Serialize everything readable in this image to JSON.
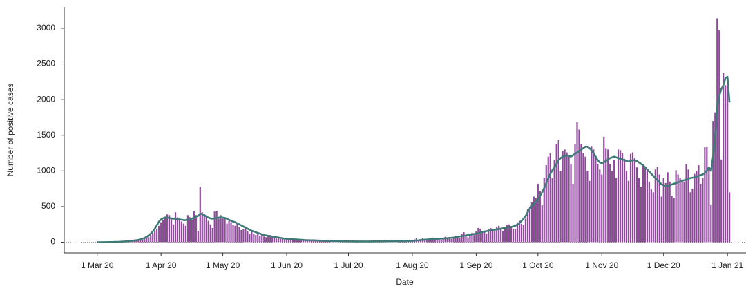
{
  "chart_data": {
    "type": "bar",
    "xlabel": "Date",
    "ylabel": "Number of positive cases",
    "x": [
      "2020-03-01",
      "2020-03-02",
      "2020-03-03",
      "2020-03-04",
      "2020-03-05",
      "2020-03-06",
      "2020-03-07",
      "2020-03-08",
      "2020-03-09",
      "2020-03-10",
      "2020-03-11",
      "2020-03-12",
      "2020-03-13",
      "2020-03-14",
      "2020-03-15",
      "2020-03-16",
      "2020-03-17",
      "2020-03-18",
      "2020-03-19",
      "2020-03-20",
      "2020-03-21",
      "2020-03-22",
      "2020-03-23",
      "2020-03-24",
      "2020-03-25",
      "2020-03-26",
      "2020-03-27",
      "2020-03-28",
      "2020-03-29",
      "2020-03-30",
      "2020-03-31",
      "2020-04-01",
      "2020-04-02",
      "2020-04-03",
      "2020-04-04",
      "2020-04-05",
      "2020-04-06",
      "2020-04-07",
      "2020-04-08",
      "2020-04-09",
      "2020-04-10",
      "2020-04-11",
      "2020-04-12",
      "2020-04-13",
      "2020-04-14",
      "2020-04-15",
      "2020-04-16",
      "2020-04-17",
      "2020-04-18",
      "2020-04-19",
      "2020-04-20",
      "2020-04-21",
      "2020-04-22",
      "2020-04-23",
      "2020-04-24",
      "2020-04-25",
      "2020-04-26",
      "2020-04-27",
      "2020-04-28",
      "2020-04-29",
      "2020-04-30",
      "2020-05-01",
      "2020-05-02",
      "2020-05-03",
      "2020-05-04",
      "2020-05-05",
      "2020-05-06",
      "2020-05-07",
      "2020-05-08",
      "2020-05-09",
      "2020-05-10",
      "2020-05-11",
      "2020-05-12",
      "2020-05-13",
      "2020-05-14",
      "2020-05-15",
      "2020-05-16",
      "2020-05-17",
      "2020-05-18",
      "2020-05-19",
      "2020-05-20",
      "2020-05-21",
      "2020-05-22",
      "2020-05-23",
      "2020-05-24",
      "2020-05-25",
      "2020-05-26",
      "2020-05-27",
      "2020-05-28",
      "2020-05-29",
      "2020-05-30",
      "2020-05-31",
      "2020-06-01",
      "2020-06-02",
      "2020-06-03",
      "2020-06-04",
      "2020-06-05",
      "2020-06-06",
      "2020-06-07",
      "2020-06-08",
      "2020-06-09",
      "2020-06-10",
      "2020-06-11",
      "2020-06-12",
      "2020-06-13",
      "2020-06-14",
      "2020-06-15",
      "2020-06-16",
      "2020-06-17",
      "2020-06-18",
      "2020-06-19",
      "2020-06-20",
      "2020-06-21",
      "2020-06-22",
      "2020-06-23",
      "2020-06-24",
      "2020-06-25",
      "2020-06-26",
      "2020-06-27",
      "2020-06-28",
      "2020-06-29",
      "2020-06-30",
      "2020-07-01",
      "2020-07-02",
      "2020-07-03",
      "2020-07-04",
      "2020-07-05",
      "2020-07-06",
      "2020-07-07",
      "2020-07-08",
      "2020-07-09",
      "2020-07-10",
      "2020-07-11",
      "2020-07-12",
      "2020-07-13",
      "2020-07-14",
      "2020-07-15",
      "2020-07-16",
      "2020-07-17",
      "2020-07-18",
      "2020-07-19",
      "2020-07-20",
      "2020-07-21",
      "2020-07-22",
      "2020-07-23",
      "2020-07-24",
      "2020-07-25",
      "2020-07-26",
      "2020-07-27",
      "2020-07-28",
      "2020-07-29",
      "2020-07-30",
      "2020-07-31",
      "2020-08-01",
      "2020-08-02",
      "2020-08-03",
      "2020-08-04",
      "2020-08-05",
      "2020-08-06",
      "2020-08-07",
      "2020-08-08",
      "2020-08-09",
      "2020-08-10",
      "2020-08-11",
      "2020-08-12",
      "2020-08-13",
      "2020-08-14",
      "2020-08-15",
      "2020-08-16",
      "2020-08-17",
      "2020-08-18",
      "2020-08-19",
      "2020-08-20",
      "2020-08-21",
      "2020-08-22",
      "2020-08-23",
      "2020-08-24",
      "2020-08-25",
      "2020-08-26",
      "2020-08-27",
      "2020-08-28",
      "2020-08-29",
      "2020-08-30",
      "2020-08-31",
      "2020-09-01",
      "2020-09-02",
      "2020-09-03",
      "2020-09-04",
      "2020-09-05",
      "2020-09-06",
      "2020-09-07",
      "2020-09-08",
      "2020-09-09",
      "2020-09-10",
      "2020-09-11",
      "2020-09-12",
      "2020-09-13",
      "2020-09-14",
      "2020-09-15",
      "2020-09-16",
      "2020-09-17",
      "2020-09-18",
      "2020-09-19",
      "2020-09-20",
      "2020-09-21",
      "2020-09-22",
      "2020-09-23",
      "2020-09-24",
      "2020-09-25",
      "2020-09-26",
      "2020-09-27",
      "2020-09-28",
      "2020-09-29",
      "2020-09-30",
      "2020-10-01",
      "2020-10-02",
      "2020-10-03",
      "2020-10-04",
      "2020-10-05",
      "2020-10-06",
      "2020-10-07",
      "2020-10-08",
      "2020-10-09",
      "2020-10-10",
      "2020-10-11",
      "2020-10-12",
      "2020-10-13",
      "2020-10-14",
      "2020-10-15",
      "2020-10-16",
      "2020-10-17",
      "2020-10-18",
      "2020-10-19",
      "2020-10-20",
      "2020-10-21",
      "2020-10-22",
      "2020-10-23",
      "2020-10-24",
      "2020-10-25",
      "2020-10-26",
      "2020-10-27",
      "2020-10-28",
      "2020-10-29",
      "2020-10-30",
      "2020-10-31",
      "2020-11-01",
      "2020-11-02",
      "2020-11-03",
      "2020-11-04",
      "2020-11-05",
      "2020-11-06",
      "2020-11-07",
      "2020-11-08",
      "2020-11-09",
      "2020-11-10",
      "2020-11-11",
      "2020-11-12",
      "2020-11-13",
      "2020-11-14",
      "2020-11-15",
      "2020-11-16",
      "2020-11-17",
      "2020-11-18",
      "2020-11-19",
      "2020-11-20",
      "2020-11-21",
      "2020-11-22",
      "2020-11-23",
      "2020-11-24",
      "2020-11-25",
      "2020-11-26",
      "2020-11-27",
      "2020-11-28",
      "2020-11-29",
      "2020-11-30",
      "2020-12-01",
      "2020-12-02",
      "2020-12-03",
      "2020-12-04",
      "2020-12-05",
      "2020-12-06",
      "2020-12-07",
      "2020-12-08",
      "2020-12-09",
      "2020-12-10",
      "2020-12-11",
      "2020-12-12",
      "2020-12-13",
      "2020-12-14",
      "2020-12-15",
      "2020-12-16",
      "2020-12-17",
      "2020-12-18",
      "2020-12-19",
      "2020-12-20",
      "2020-12-21",
      "2020-12-22",
      "2020-12-23",
      "2020-12-24",
      "2020-12-25",
      "2020-12-26",
      "2020-12-27",
      "2020-12-28",
      "2020-12-29",
      "2020-12-30",
      "2020-12-31",
      "2021-01-01",
      "2021-01-02"
    ],
    "series": [
      {
        "type": "bar",
        "color": "#8e4a9a",
        "values": [
          0,
          0,
          0,
          0,
          0,
          2,
          1,
          3,
          2,
          5,
          4,
          6,
          8,
          10,
          12,
          15,
          18,
          25,
          30,
          20,
          40,
          35,
          30,
          60,
          80,
          70,
          100,
          130,
          160,
          190,
          230,
          280,
          310,
          360,
          390,
          380,
          330,
          250,
          420,
          350,
          330,
          290,
          260,
          230,
          380,
          350,
          310,
          440,
          380,
          160,
          780,
          420,
          400,
          360,
          300,
          250,
          200,
          430,
          440,
          330,
          380,
          330,
          350,
          260,
          300,
          280,
          240,
          230,
          260,
          210,
          170,
          180,
          220,
          150,
          120,
          160,
          120,
          100,
          130,
          90,
          120,
          80,
          70,
          90,
          100,
          70,
          60,
          50,
          60,
          45,
          50,
          40,
          40,
          45,
          35,
          50,
          30,
          30,
          25,
          35,
          30,
          28,
          25,
          30,
          22,
          20,
          25,
          22,
          20,
          25,
          18,
          20,
          22,
          18,
          15,
          20,
          18,
          15,
          14,
          16,
          12,
          14,
          12,
          10,
          14,
          11,
          9,
          13,
          10,
          12,
          11,
          9,
          10,
          12,
          14,
          11,
          10,
          13,
          12,
          15,
          14,
          11,
          13,
          16,
          15,
          12,
          14,
          18,
          16,
          13,
          20,
          18,
          22,
          25,
          40,
          55,
          30,
          35,
          60,
          45,
          40,
          30,
          50,
          65,
          55,
          45,
          40,
          35,
          60,
          75,
          55,
          50,
          45,
          70,
          90,
          80,
          60,
          120,
          140,
          90,
          70,
          110,
          130,
          100,
          150,
          200,
          190,
          160,
          140,
          120,
          180,
          200,
          170,
          150,
          220,
          230,
          190,
          160,
          200,
          240,
          250,
          210,
          190,
          180,
          280,
          300,
          260,
          240,
          330,
          460,
          500,
          560,
          640,
          620,
          820,
          720,
          520,
          900,
          1080,
          1200,
          1250,
          900,
          1150,
          1380,
          1430,
          1000,
          1280,
          1300,
          1260,
          1200,
          1100,
          820,
          1380,
          1690,
          1580,
          1380,
          1250,
          1200,
          1000,
          860,
          1350,
          1300,
          1200,
          1100,
          1020,
          950,
          1480,
          1320,
          1300,
          1100,
          1000,
          1150,
          900,
          1300,
          1290,
          1250,
          1170,
          1000,
          860,
          1240,
          1260,
          1180,
          1050,
          900,
          780,
          1080,
          1050,
          1000,
          850,
          740,
          700,
          1020,
          1060,
          950,
          640,
          900,
          830,
          980,
          850,
          650,
          620,
          1010,
          950,
          900,
          880,
          840,
          1100,
          1020,
          700,
          750,
          960,
          1000,
          1080,
          820,
          900,
          1330,
          1340,
          1050,
          530,
          1700,
          1820,
          3140,
          2970,
          1160,
          2370,
          2200,
          2230,
          700
        ]
      },
      {
        "type": "line",
        "color": "#3f7a78",
        "values": [
          0,
          0,
          0,
          1,
          1,
          1,
          2,
          2,
          3,
          4,
          5,
          6,
          8,
          10,
          12,
          14,
          17,
          20,
          24,
          28,
          33,
          40,
          48,
          60,
          75,
          95,
          120,
          150,
          190,
          240,
          290,
          320,
          335,
          345,
          345,
          340,
          335,
          330,
          330,
          325,
          320,
          315,
          310,
          310,
          315,
          320,
          330,
          345,
          360,
          370,
          400,
          395,
          380,
          360,
          345,
          335,
          330,
          335,
          340,
          345,
          350,
          345,
          340,
          330,
          315,
          300,
          290,
          280,
          265,
          250,
          235,
          220,
          205,
          190,
          175,
          160,
          150,
          140,
          130,
          120,
          110,
          100,
          95,
          90,
          85,
          80,
          75,
          70,
          65,
          60,
          55,
          50,
          48,
          46,
          44,
          42,
          40,
          38,
          36,
          34,
          32,
          30,
          29,
          28,
          27,
          26,
          25,
          24,
          23,
          22,
          21,
          20,
          19,
          18,
          17,
          16,
          15,
          15,
          14,
          14,
          13,
          13,
          12,
          12,
          12,
          11,
          11,
          11,
          11,
          11,
          11,
          11,
          11,
          11,
          12,
          12,
          12,
          12,
          12,
          13,
          13,
          13,
          13,
          14,
          14,
          14,
          15,
          15,
          16,
          16,
          17,
          18,
          19,
          20,
          22,
          25,
          27,
          30,
          32,
          35,
          37,
          40,
          42,
          44,
          46,
          48,
          50,
          50,
          52,
          55,
          57,
          60,
          62,
          65,
          70,
          75,
          80,
          85,
          90,
          95,
          100,
          105,
          110,
          115,
          120,
          125,
          135,
          145,
          150,
          155,
          160,
          165,
          170,
          175,
          180,
          185,
          190,
          195,
          200,
          205,
          210,
          215,
          220,
          230,
          250,
          270,
          300,
          330,
          370,
          420,
          470,
          510,
          540,
          560,
          600,
          650,
          700,
          760,
          830,
          900,
          960,
          1010,
          1050,
          1100,
          1150,
          1180,
          1200,
          1210,
          1220,
          1210,
          1200,
          1220,
          1240,
          1260,
          1280,
          1300,
          1320,
          1340,
          1340,
          1320,
          1290,
          1250,
          1200,
          1150,
          1120,
          1110,
          1120,
          1140,
          1160,
          1180,
          1190,
          1200,
          1190,
          1180,
          1170,
          1160,
          1150,
          1140,
          1130,
          1140,
          1150,
          1150,
          1140,
          1120,
          1100,
          1080,
          1050,
          1020,
          990,
          960,
          930,
          900,
          870,
          840,
          810,
          800,
          790,
          790,
          800,
          810,
          820,
          830,
          840,
          850,
          860,
          870,
          880,
          890,
          900,
          905,
          910,
          920,
          930,
          940,
          950,
          970,
          1000,
          1050,
          1000,
          1200,
          1500,
          1900,
          2050,
          2150,
          2200,
          2300,
          2320,
          1960
        ]
      }
    ],
    "xlim": [
      "2020-02-14",
      "2021-01-10"
    ],
    "xticks": [
      {
        "value": "2020-03-01",
        "label": "1 Mar 20"
      },
      {
        "value": "2020-04-01",
        "label": "1 Apr 20"
      },
      {
        "value": "2020-05-01",
        "label": "1 May 20"
      },
      {
        "value": "2020-06-01",
        "label": "1 Jun 20"
      },
      {
        "value": "2020-07-01",
        "label": "1 Jul 20"
      },
      {
        "value": "2020-08-01",
        "label": "1 Aug 20"
      },
      {
        "value": "2020-09-01",
        "label": "1 Sep 20"
      },
      {
        "value": "2020-10-01",
        "label": "1 Oct 20"
      },
      {
        "value": "2020-11-01",
        "label": "1 Nov 20"
      },
      {
        "value": "2020-12-01",
        "label": "1 Dec 20"
      },
      {
        "value": "2021-01-01",
        "label": "1 Jan 21"
      }
    ],
    "ylim": [
      -150,
      3300
    ],
    "yticks": [
      0,
      500,
      1000,
      1500,
      2000,
      2500,
      3000
    ],
    "grid": false
  }
}
